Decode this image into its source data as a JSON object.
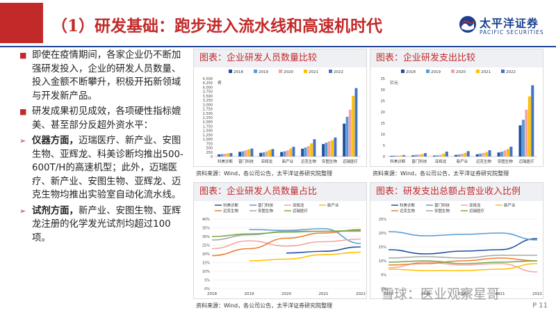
{
  "title": "（1）研发基础：跑步进入流水线和高速机时代",
  "logo": {
    "cn": "太平洋证券",
    "en": "PACIFIC SECURITIES"
  },
  "colors": {
    "accent": "#c22a2a",
    "brand": "#1a3f8f"
  },
  "bullets": [
    {
      "marker": "■",
      "text": "即使在疫情期间，各家企业仍不断加强研发投入，企业的研发人员数量、投入金额不断攀升，积极开拓新领域与开发新产品。"
    },
    {
      "marker": "■",
      "text": "研发成果初见成效，各项硬性指标媲美、甚至部分反超外资水平："
    },
    {
      "marker": "➢",
      "bold": "仪器方面，",
      "text": "迈瑞医疗、新产业、安图生物、亚辉龙、科美诊断均推出500-600T/H的高速机型；此外，迈瑞医疗、新产业、安图生物、亚辉龙、迈克生物均推出实验室自动化流水线。"
    },
    {
      "marker": "➢",
      "bold": "试剂方面，",
      "text": "新产业、安图生物、亚辉龙注册的化学发光试剂均超过100项。"
    }
  ],
  "source_text": "资料来源：Wind，各公司公告，太平洋证券研究院整理",
  "page_number": "P 11",
  "watermark": "雪球：医业观察星哥",
  "chart_data": [
    {
      "type": "bar",
      "title": "图表：企业研发人员数量比较",
      "unit": "名",
      "ylim": [
        0,
        4500
      ],
      "yticks": [
        "0",
        "250",
        "500",
        "750",
        "1,000",
        "1,250",
        "1,500",
        "1,750",
        "2,000",
        "2,250",
        "2,500",
        "2,750",
        "3,000",
        "3,250",
        "3,500",
        "3,750",
        "4,000",
        "4,250",
        "4,500"
      ],
      "categories": [
        "科美诊断",
        "普门科技",
        "亚辉龙",
        "新产业",
        "迈克生物",
        "安图生物",
        "迈瑞医疗"
      ],
      "series": [
        {
          "name": "2018",
          "color": "#1f4e9c",
          "values": [
            120,
            270,
            210,
            260,
            450,
            720,
            1900
          ]
        },
        {
          "name": "2019",
          "color": "#5b9bd5",
          "values": [
            140,
            300,
            240,
            300,
            520,
            800,
            2300
          ]
        },
        {
          "name": "2020",
          "color": "#f4a3a3",
          "values": [
            160,
            360,
            300,
            360,
            600,
            880,
            2700
          ]
        },
        {
          "name": "2021",
          "color": "#ffc000",
          "values": [
            180,
            420,
            380,
            460,
            760,
            950,
            3500
          ]
        },
        {
          "name": "2022",
          "color": "#4472c4",
          "values": [
            200,
            460,
            430,
            560,
            1000,
            1100,
            3950
          ]
        }
      ]
    },
    {
      "type": "bar",
      "title": "图表：企业研发支出比较",
      "unit": "亿元",
      "ylim": [
        0,
        35
      ],
      "yticks": [
        "0",
        "5",
        "10",
        "15",
        "20",
        "25",
        "30",
        "35"
      ],
      "categories": [
        "科美诊断",
        "普门科技",
        "亚辉龙",
        "新产业",
        "迈克生物",
        "安图生物",
        "迈瑞医疗"
      ],
      "series": [
        {
          "name": "2018",
          "color": "#1f4e9c",
          "values": [
            0.3,
            0.5,
            0.4,
            0.7,
            1.0,
            1.8,
            14.0
          ]
        },
        {
          "name": "2019",
          "color": "#5b9bd5",
          "values": [
            0.4,
            0.7,
            0.5,
            0.9,
            1.3,
            2.2,
            16.5
          ]
        },
        {
          "name": "2020",
          "color": "#f4a3a3",
          "values": [
            0.4,
            0.9,
            0.8,
            1.2,
            1.6,
            2.8,
            21.0
          ]
        },
        {
          "name": "2021",
          "color": "#ffc000",
          "values": [
            0.5,
            1.1,
            1.3,
            1.6,
            2.0,
            3.4,
            27.0
          ]
        },
        {
          "name": "2022",
          "color": "#4472c4",
          "values": [
            0.6,
            1.5,
            2.2,
            2.4,
            2.8,
            4.4,
            32.0
          ]
        }
      ]
    },
    {
      "type": "line",
      "title": "图表：企业研发人员数量占比",
      "x": [
        "2018",
        "2019",
        "2020",
        "2021",
        "2022"
      ],
      "ylim": [
        0,
        0.4
      ],
      "yticks": [
        "0%",
        "5%",
        "10%",
        "15%",
        "20%",
        "25%",
        "30%",
        "35%",
        "40%"
      ],
      "series": [
        {
          "name": "科美诊断",
          "color": "#1f4e9c",
          "values": [
            null,
            null,
            0.205,
            0.215,
            0.24
          ]
        },
        {
          "name": "普门科技",
          "color": "#5b9bd5",
          "values": [
            null,
            0.34,
            0.335,
            0.345,
            0.26
          ]
        },
        {
          "name": "亚辉龙",
          "color": "#f4a3a3",
          "values": [
            0.23,
            0.275,
            0.245,
            0.27,
            0.285
          ]
        },
        {
          "name": "新产业",
          "color": "#ffc000",
          "values": [
            null,
            0.16,
            0.17,
            0.195,
            0.21
          ]
        },
        {
          "name": "迈克生物",
          "color": "#ed7d31",
          "values": [
            0.19,
            0.23,
            0.29,
            0.32,
            0.34
          ]
        },
        {
          "name": "安图生物",
          "color": "#a5a5a5",
          "values": [
            0.28,
            0.31,
            0.33,
            0.33,
            0.33
          ]
        },
        {
          "name": "迈瑞医疗",
          "color": "#70ad47",
          "values": [
            0.3,
            0.315,
            0.325,
            0.33,
            0.335
          ]
        }
      ]
    },
    {
      "type": "line",
      "title": "图表：研发支出总额占营业收入比例",
      "x": [
        "2018",
        "2019",
        "2020",
        "2021",
        "2022"
      ],
      "ylim": [
        0,
        0.25
      ],
      "yticks": [
        "0%",
        "5%",
        "10%",
        "15%",
        "20%",
        "25%"
      ],
      "series": [
        {
          "name": "科美诊断",
          "color": "#1f4e9c",
          "values": [
            0.14,
            0.125,
            0.135,
            0.14,
            0.18
          ]
        },
        {
          "name": "普门科技",
          "color": "#5b9bd5",
          "values": [
            0.205,
            0.19,
            0.195,
            0.2,
            0.175
          ]
        },
        {
          "name": "亚辉龙",
          "color": "#f4a3a3",
          "values": [
            0.075,
            0.095,
            0.085,
            0.09,
            0.06
          ]
        },
        {
          "name": "新产业",
          "color": "#ffc000",
          "values": [
            0.07,
            0.065,
            0.065,
            0.07,
            0.09
          ]
        },
        {
          "name": "迈克生物",
          "color": "#ed7d31",
          "values": [
            0.085,
            0.09,
            0.1,
            0.11,
            0.1
          ]
        },
        {
          "name": "安图生物",
          "color": "#a5a5a5",
          "values": [
            0.11,
            0.115,
            0.11,
            0.12,
            0.12
          ]
        },
        {
          "name": "迈瑞医疗",
          "color": "#70ad47",
          "values": [
            0.095,
            0.1,
            0.09,
            0.095,
            0.1
          ]
        }
      ]
    }
  ]
}
